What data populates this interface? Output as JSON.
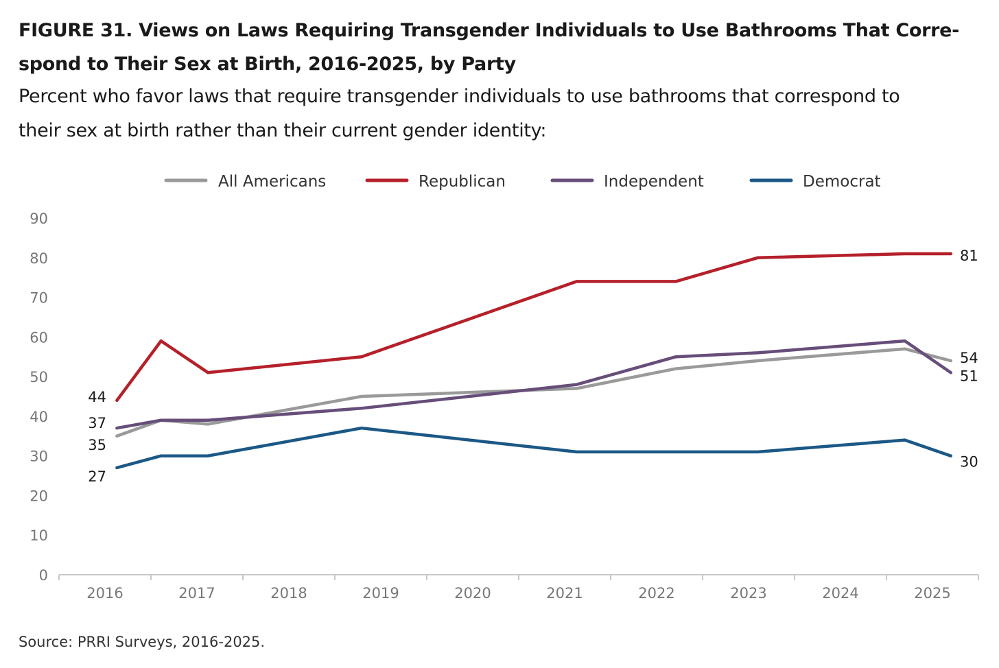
{
  "title_lines": [
    "FIGURE 31.  Views on Laws Requiring Transgender Individuals to Use Bathrooms That Corre-",
    "spond to Their Sex at Birth, 2016-2025, by Party"
  ],
  "subtitle_lines": [
    "Percent who favor laws that require transgender individuals to use bathrooms that correspond to",
    "their sex at birth rather than their current gender identity:"
  ],
  "source": "Source: PRRI Surveys, 2016-2025.",
  "chart_data": {
    "type": "line",
    "xlim": [
      2016,
      2026
    ],
    "ylim": [
      0,
      90
    ],
    "yticks": [
      "0",
      "10",
      "20",
      "30",
      "40",
      "50",
      "60",
      "70",
      "80",
      "90"
    ],
    "xticks": [
      "2016",
      "2017",
      "2018",
      "2019",
      "2020",
      "2021",
      "2022",
      "2023",
      "2024",
      "2025"
    ],
    "grid": false,
    "legend": "top",
    "x": [
      2016.63,
      2017.11,
      2017.62,
      2019.29,
      2021.63,
      2022.71,
      2023.6,
      2025.2,
      2025.7
    ],
    "series": [
      {
        "name": "All Americans",
        "color": "#9a9a9a",
        "values": [
          35,
          39,
          38,
          45,
          47,
          52,
          54,
          57,
          54
        ],
        "start_label": "35",
        "end_label": "54"
      },
      {
        "name": "Republican",
        "color": "#b5202a",
        "values": [
          44,
          59,
          51,
          55,
          74,
          74,
          80,
          81,
          81
        ],
        "start_label": "44",
        "end_label": "81"
      },
      {
        "name": "Independent",
        "color": "#674e7a",
        "values": [
          37,
          39,
          39,
          42,
          48,
          55,
          56,
          59,
          51
        ],
        "start_label": "37",
        "end_label": "51"
      },
      {
        "name": "Democrat",
        "color": "#1b5886",
        "values": [
          27,
          30,
          30,
          37,
          31,
          31,
          31,
          34,
          30
        ],
        "start_label": "27",
        "end_label": "30"
      }
    ]
  }
}
